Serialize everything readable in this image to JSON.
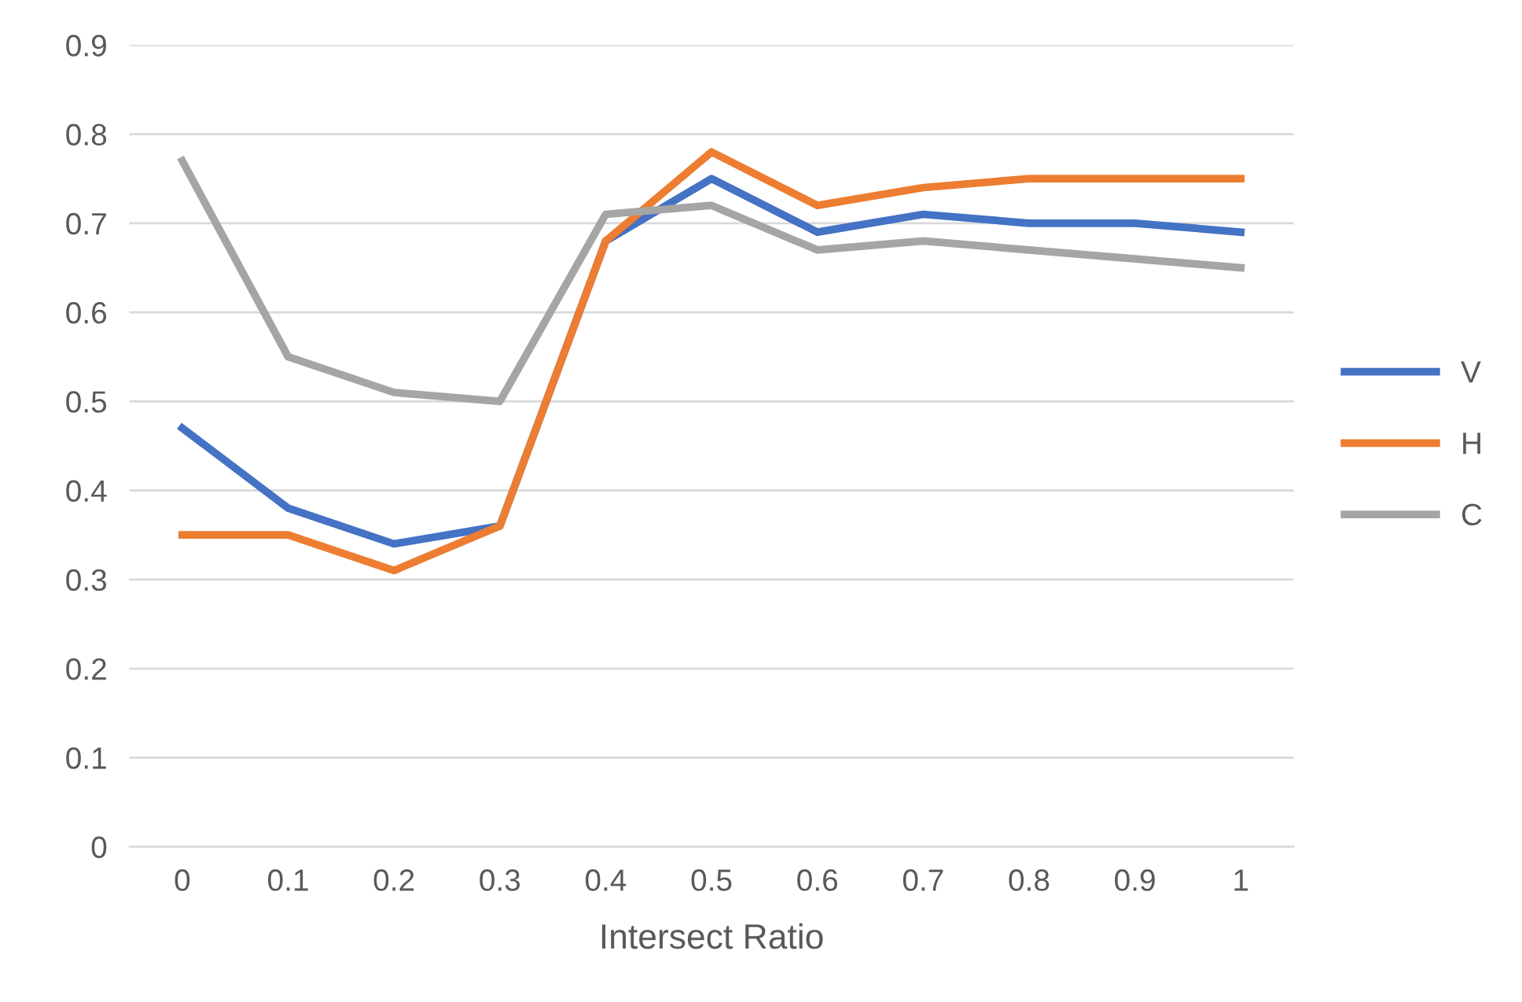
{
  "chart_data": {
    "type": "line",
    "xlabel": "Intersect Ratio",
    "categories": [
      "0",
      "0.1",
      "0.2",
      "0.3",
      "0.4",
      "0.5",
      "0.6",
      "0.7",
      "0.8",
      "0.9",
      "1"
    ],
    "series": [
      {
        "name": "V",
        "color": "#4472c4",
        "values": [
          0.47,
          0.38,
          0.34,
          0.36,
          0.68,
          0.75,
          0.69,
          0.71,
          0.7,
          0.7,
          0.69
        ]
      },
      {
        "name": "H",
        "color": "#ed7d31",
        "values": [
          0.35,
          0.35,
          0.31,
          0.36,
          0.68,
          0.78,
          0.72,
          0.74,
          0.75,
          0.75,
          0.75
        ]
      },
      {
        "name": "C",
        "color": "#a5a5a5",
        "values": [
          0.77,
          0.55,
          0.51,
          0.5,
          0.71,
          0.72,
          0.67,
          0.68,
          0.67,
          0.66,
          0.65
        ]
      }
    ],
    "ylim": [
      0,
      0.9
    ],
    "yticks": [
      0,
      0.1,
      0.2,
      0.3,
      0.4,
      0.5,
      0.6,
      0.7,
      0.8,
      0.9
    ],
    "grid": "y",
    "legend": "right",
    "marker": "none",
    "line_style": "solid"
  }
}
